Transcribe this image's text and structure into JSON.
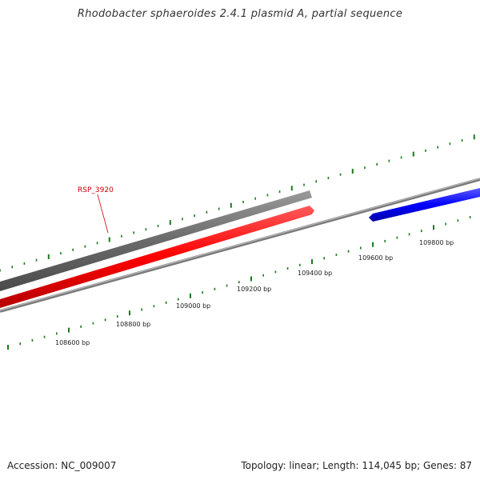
{
  "title": "Rhodobacter sphaeroides 2.4.1 plasmid A, partial sequence",
  "footer": {
    "accession": "Accession: NC_009007",
    "summary": "Topology: linear; Length: 114,045 bp; Genes: 87"
  },
  "genes": [
    {
      "label": "RSP_3920",
      "color": "#ff0000"
    },
    {
      "label": "",
      "color": "#0000ff"
    }
  ],
  "scale": {
    "tick_labels": [
      "108600 bp",
      "108800 bp",
      "109000 bp",
      "109200 bp",
      "109400 bp",
      "109600 bp",
      "109800 bp"
    ],
    "tick_color": "#1a7a1a"
  },
  "colors": {
    "backbone": "#888888",
    "gray_feature": "#6e6e6e",
    "forward_gene": "#ff0000",
    "reverse_gene": "#0000ff"
  }
}
